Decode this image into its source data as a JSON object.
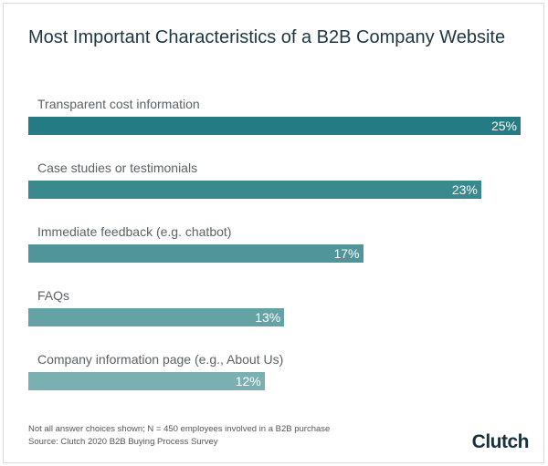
{
  "chart_data": {
    "type": "bar",
    "orientation": "horizontal",
    "title": "Most Important Characteristics of a B2B Company Website",
    "categories": [
      "Transparent cost information",
      "Case studies or testimonials",
      "Immediate feedback (e.g. chatbot)",
      "FAQs",
      "Company information page (e.g., About Us)"
    ],
    "values": [
      25,
      23,
      17,
      13,
      12
    ],
    "value_labels": [
      "25%",
      "23%",
      "17%",
      "13%",
      "12%"
    ],
    "colors": [
      "#257b83",
      "#3a898e",
      "#4f9599",
      "#64a2a6",
      "#7bb0b3"
    ],
    "xlim": [
      0,
      25
    ],
    "grid": false
  },
  "footer": {
    "note": "Not all answer choices shown; N = 450 employees involved in a B2B purchase",
    "source": "Source: Clutch 2020 B2B Buying Process Survey",
    "logo": "Clutch"
  }
}
